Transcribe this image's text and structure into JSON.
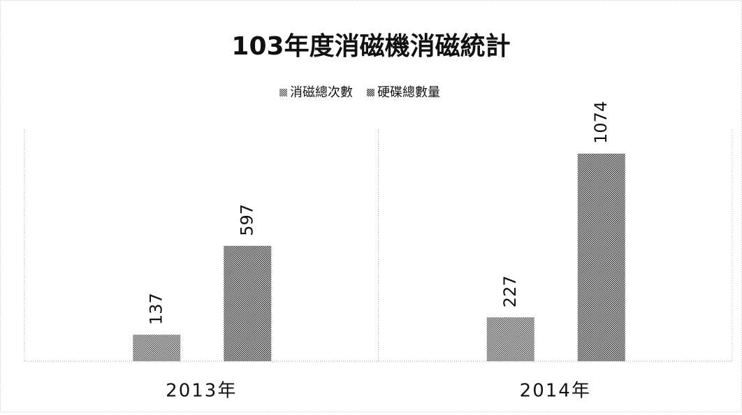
{
  "chart_data": {
    "type": "bar",
    "title": "103年度消磁機消磁統計",
    "categories": [
      "2013年",
      "2014年"
    ],
    "series": [
      {
        "name": "消磁總次數",
        "color": "#4a4a4a",
        "values": [
          137,
          227
        ]
      },
      {
        "name": "硬碟總數量",
        "color": "#2a2a2a",
        "values": [
          597,
          1074
        ]
      }
    ],
    "ylim": [
      0,
      1200
    ],
    "legend": "top"
  }
}
